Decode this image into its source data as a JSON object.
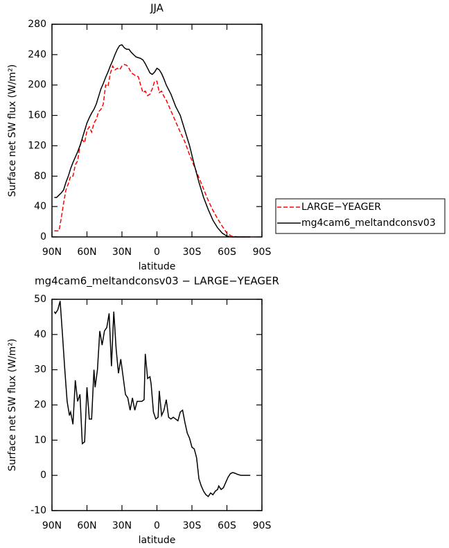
{
  "chart_data": [
    {
      "type": "line",
      "title": "JJA",
      "xlabel": "latitude",
      "ylabel": "Surface net SW flux (W/m²)",
      "x": [
        88,
        86,
        84,
        82,
        80,
        78,
        76,
        74,
        72,
        70,
        68,
        66,
        64,
        62,
        60,
        58,
        56,
        54,
        52,
        50,
        48,
        46,
        44,
        42,
        40,
        38,
        36,
        34,
        32,
        30,
        28,
        26,
        24,
        22,
        20,
        18,
        16,
        14,
        12,
        10,
        8,
        6,
        4,
        2,
        0,
        -2,
        -4,
        -6,
        -8,
        -10,
        -12,
        -16,
        -20,
        -24,
        -28,
        -32,
        -36,
        -40,
        -44,
        -48,
        -52,
        -56,
        -60,
        -64,
        -70,
        -80
      ],
      "series": [
        {
          "name": "LARGE−YEAGER",
          "color": "#ff0000",
          "linestyle": "dashed",
          "values": [
            8,
            8,
            8,
            25,
            45,
            62,
            70,
            80,
            80,
            95,
            100,
            120,
            128,
            124,
            140,
            145,
            138,
            150,
            155,
            165,
            168,
            175,
            200,
            198,
            215,
            225,
            220,
            222,
            220,
            225,
            227,
            226,
            222,
            216,
            214,
            212,
            211,
            200,
            190,
            192,
            186,
            188,
            195,
            205,
            205,
            190,
            192,
            185,
            180,
            173,
            166,
            152,
            138,
            125,
            108,
            93,
            78,
            63,
            48,
            35,
            24,
            14,
            5,
            1,
            0,
            0
          ]
        },
        {
          "name": "mg4cam6_meltandconsv03",
          "color": "#000000",
          "linestyle": "solid",
          "values": [
            52,
            52,
            55,
            58,
            62,
            72,
            80,
            90,
            98,
            105,
            112,
            120,
            130,
            140,
            150,
            157,
            163,
            168,
            175,
            185,
            195,
            202,
            210,
            217,
            225,
            232,
            240,
            247,
            252,
            253,
            249,
            247,
            247,
            243,
            240,
            237,
            236,
            235,
            233,
            228,
            222,
            216,
            214,
            217,
            222,
            220,
            215,
            208,
            200,
            194,
            188,
            172,
            160,
            140,
            120,
            95,
            72,
            52,
            36,
            22,
            12,
            5,
            1,
            0,
            0,
            0
          ]
        }
      ],
      "xlim": [
        90,
        -90
      ],
      "xticks": [
        {
          "value": 90,
          "label": "90N"
        },
        {
          "value": 60,
          "label": "60N"
        },
        {
          "value": 30,
          "label": "30N"
        },
        0,
        {
          "value": -30,
          "label": "30S"
        },
        {
          "value": -60,
          "label": "60S"
        },
        {
          "value": -90,
          "label": "90S"
        }
      ],
      "ylim": [
        0,
        280
      ],
      "yticks": [
        0,
        40,
        80,
        120,
        160,
        200,
        240,
        280
      ],
      "legend": "outside-right"
    },
    {
      "type": "line",
      "title": "mg4cam6_meltandconsv03 − LARGE−YEAGER",
      "xlabel": "latitude",
      "ylabel": "Surface net SW flux (W/m²)",
      "x": [
        88,
        87,
        85,
        83,
        81,
        79,
        77,
        75,
        74,
        72,
        70,
        68,
        66,
        64,
        62,
        60,
        58,
        56,
        54,
        53,
        51,
        49,
        47,
        45,
        43,
        41,
        39,
        37,
        35,
        33,
        31,
        29,
        27,
        25,
        23,
        21,
        19,
        17,
        15,
        13,
        11,
        10,
        8,
        6,
        5,
        3,
        1,
        -1,
        -2,
        -4,
        -6,
        -8,
        -10,
        -12,
        -14,
        -16,
        -18,
        -20,
        -22,
        -24,
        -26,
        -28,
        -30,
        -32,
        -34,
        -36,
        -38,
        -40,
        -42,
        -44,
        -46,
        -48,
        -50,
        -52,
        -53,
        -55,
        -57,
        -59,
        -61,
        -63,
        -65,
        -67,
        -69,
        -72,
        -75,
        -80
      ],
      "series": [
        {
          "color": "#000000",
          "linestyle": "solid",
          "values": [
            46.5,
            46,
            47,
            49.5,
            40,
            30,
            21,
            17,
            18,
            14.5,
            27,
            21,
            23,
            9,
            9.5,
            25,
            16,
            16,
            30,
            25,
            30,
            41,
            37,
            41,
            42,
            46,
            31,
            46.5,
            36,
            29,
            33,
            28,
            23,
            22,
            18.5,
            22,
            18.5,
            21,
            21,
            21,
            21.5,
            34.5,
            27.5,
            28,
            26,
            18,
            16,
            16.5,
            24,
            17,
            18.5,
            21.5,
            16.5,
            16,
            16.5,
            16,
            15.5,
            18,
            18.5,
            15,
            12,
            10.5,
            8,
            7.5,
            5,
            -1,
            -3,
            -4.5,
            -5.5,
            -6,
            -5,
            -5.5,
            -4.5,
            -4,
            -3,
            -4,
            -3.5,
            -2,
            -0.5,
            0.5,
            0.8,
            0.6,
            0.3,
            0,
            0,
            0
          ]
        }
      ],
      "xlim": [
        90,
        -90
      ],
      "xticks": [
        {
          "value": 90,
          "label": "90N"
        },
        {
          "value": 60,
          "label": "60N"
        },
        {
          "value": 30,
          "label": "30N"
        },
        0,
        {
          "value": -30,
          "label": "30S"
        },
        {
          "value": -60,
          "label": "60S"
        },
        {
          "value": -90,
          "label": "90S"
        }
      ],
      "ylim": [
        -10,
        50
      ],
      "yticks": [
        -10,
        0,
        10,
        20,
        30,
        40,
        50
      ]
    }
  ]
}
